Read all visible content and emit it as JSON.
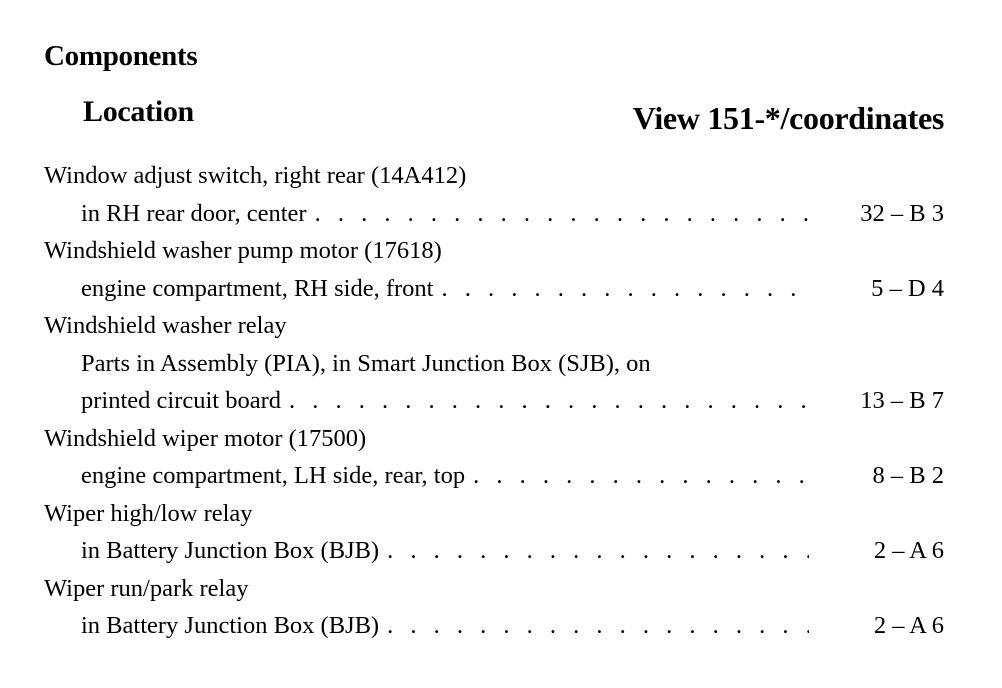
{
  "title": "Components",
  "columns": {
    "location": "Location",
    "view": "View 151-*/coordinates"
  },
  "items": [
    {
      "name": "Window adjust switch, right rear (14A412)",
      "location": [
        "in RH rear door, center"
      ],
      "coord": "32 – B 3"
    },
    {
      "name": "Windshield washer pump motor (17618)",
      "location": [
        "engine compartment, RH side, front"
      ],
      "coord": "5 – D 4"
    },
    {
      "name": "Windshield washer relay",
      "location": [
        "Parts in Assembly (PIA), in Smart Junction Box (SJB), on",
        "printed circuit board"
      ],
      "coord": "13 – B 7"
    },
    {
      "name": "Windshield wiper motor (17500)",
      "location": [
        "engine compartment, LH side, rear, top"
      ],
      "coord": "8 – B 2"
    },
    {
      "name": "Wiper high/low relay",
      "location": [
        "in Battery Junction Box (BJB)"
      ],
      "coord": "2 – A 6"
    },
    {
      "name": "Wiper run/park relay",
      "location": [
        "in Battery Junction Box (BJB)"
      ],
      "coord": "2 – A 6"
    }
  ]
}
